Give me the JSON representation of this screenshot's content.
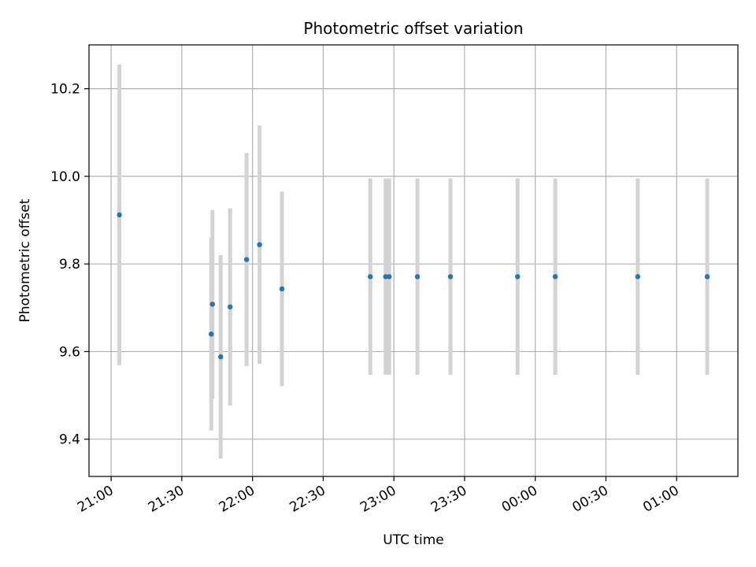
{
  "chart_data": {
    "type": "scatter",
    "title": "Photometric offset variation",
    "xlabel": "UTC time",
    "ylabel": "Photometric offset",
    "grid": true,
    "x_tick_labels": [
      "21:00",
      "21:30",
      "22:00",
      "22:30",
      "23:00",
      "23:30",
      "00:00",
      "00:30",
      "01:00"
    ],
    "y_tick_labels": [
      "9.4",
      "9.6",
      "9.8",
      "10.0",
      "10.2"
    ],
    "x_ticks_minutes_from_21": [
      0,
      30,
      60,
      90,
      120,
      150,
      180,
      210,
      240
    ],
    "y_ticks": [
      9.4,
      9.6,
      9.8,
      10.0,
      10.2
    ],
    "xlim_minutes_from_21": [
      -9.4,
      266.0
    ],
    "ylim": [
      9.315,
      10.3
    ],
    "colors": {
      "marker": "#1f77b4",
      "errorbar": "#d3d3d3",
      "grid": "#b0b0b0"
    },
    "points": [
      {
        "t": "21:03",
        "x": 3.5,
        "y": 9.912,
        "err": 0.343
      },
      {
        "t": "21:42",
        "x": 42.5,
        "y": 9.64,
        "err": 0.22
      },
      {
        "t": "21:43",
        "x": 43.0,
        "y": 9.708,
        "err": 0.215
      },
      {
        "t": "21:46",
        "x": 46.5,
        "y": 9.588,
        "err": 0.232
      },
      {
        "t": "21:51",
        "x": 50.5,
        "y": 9.702,
        "err": 0.225
      },
      {
        "t": "21:58",
        "x": 57.5,
        "y": 9.81,
        "err": 0.243
      },
      {
        "t": "22:03",
        "x": 63.0,
        "y": 9.844,
        "err": 0.272
      },
      {
        "t": "22:13",
        "x": 72.5,
        "y": 9.743,
        "err": 0.222
      },
      {
        "t": "22:50",
        "x": 110.0,
        "y": 9.771,
        "err": 0.224
      },
      {
        "t": "22:56",
        "x": 116.5,
        "y": 9.771,
        "err": 0.224
      },
      {
        "t": "22:58",
        "x": 118.0,
        "y": 9.771,
        "err": 0.224
      },
      {
        "t": "23:10",
        "x": 130.0,
        "y": 9.771,
        "err": 0.224
      },
      {
        "t": "23:24",
        "x": 144.0,
        "y": 9.771,
        "err": 0.224
      },
      {
        "t": "23:52",
        "x": 172.5,
        "y": 9.771,
        "err": 0.224
      },
      {
        "t": "00:09",
        "x": 188.5,
        "y": 9.771,
        "err": 0.224
      },
      {
        "t": "00:44",
        "x": 223.5,
        "y": 9.771,
        "err": 0.224
      },
      {
        "t": "01:13",
        "x": 253.0,
        "y": 9.771,
        "err": 0.224
      }
    ]
  }
}
